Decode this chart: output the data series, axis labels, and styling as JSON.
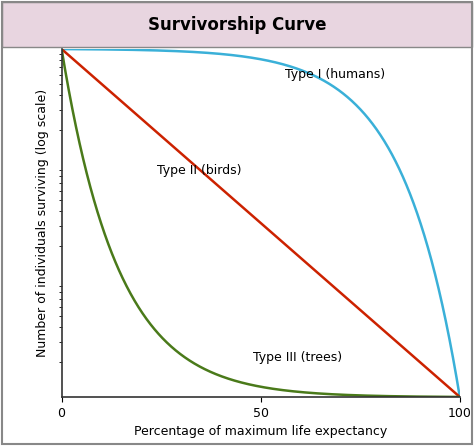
{
  "title": "Survivorship Curve",
  "title_bg_color": "#e8d5e0",
  "title_border_color": "#888888",
  "outer_border_color": "#888888",
  "xlabel": "Percentage of maximum life expectancy",
  "ylabel": "Number of individuals surviving (log scale)",
  "x_ticks": [
    0,
    50,
    100
  ],
  "background_color": "#ffffff",
  "plot_bg_color": "#ffffff",
  "curves": {
    "type1": {
      "label": "Type I (humans)",
      "color": "#3ab0d8",
      "linewidth": 1.8
    },
    "type2": {
      "label": "Type II (birds)",
      "color": "#cc2200",
      "linewidth": 1.8
    },
    "type3": {
      "label": "Type III (trees)",
      "color": "#4a7a1a",
      "linewidth": 1.8
    }
  },
  "fontsize_title": 12,
  "fontsize_labels": 9,
  "fontsize_annotations": 9
}
